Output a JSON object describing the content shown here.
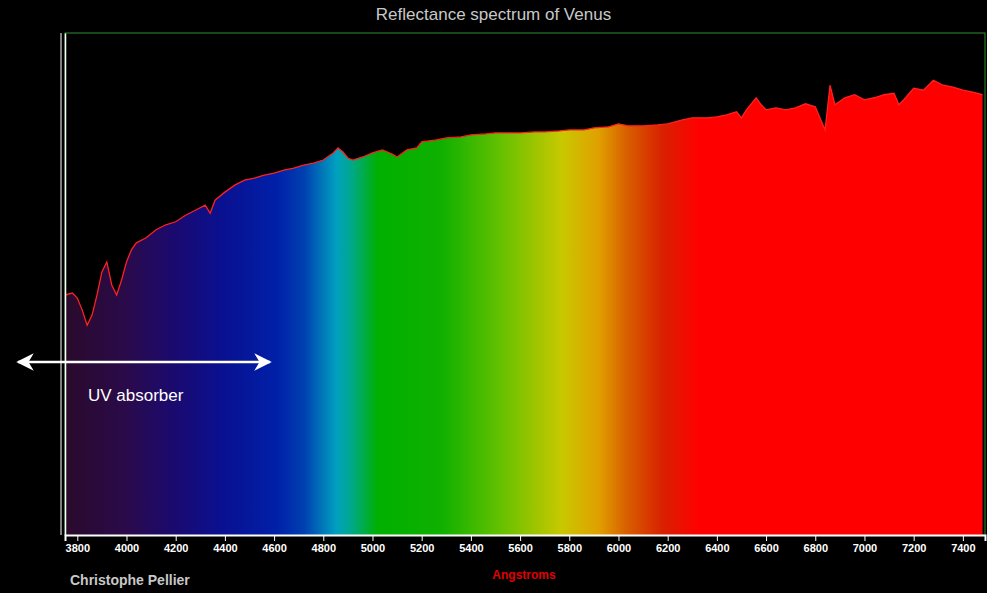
{
  "chart_data": {
    "type": "area",
    "title": "Reflectance spectrum of Venus",
    "x_label": "Angstroms",
    "credit": "Christophe Pellier",
    "annotations": [
      "UV absorber"
    ],
    "color": "#ff2020",
    "tick_labels": "x",
    "xlim": [
      3750,
      7490
    ],
    "ylim": [
      0,
      1
    ],
    "xticks": [
      3800,
      4000,
      4200,
      4400,
      4600,
      4800,
      5000,
      5200,
      5400,
      5600,
      5800,
      6000,
      6200,
      6400,
      6600,
      6800,
      7000,
      7200,
      7400
    ],
    "x": [
      3750,
      3780,
      3800,
      3820,
      3840,
      3860,
      3880,
      3900,
      3920,
      3940,
      3960,
      3980,
      4000,
      4020,
      4040,
      4080,
      4120,
      4160,
      4200,
      4240,
      4280,
      4320,
      4340,
      4360,
      4400,
      4440,
      4480,
      4520,
      4560,
      4600,
      4640,
      4680,
      4720,
      4760,
      4800,
      4840,
      4860,
      4880,
      4900,
      4920,
      4960,
      5000,
      5040,
      5080,
      5100,
      5140,
      5180,
      5200,
      5260,
      5300,
      5360,
      5400,
      5460,
      5500,
      5560,
      5600,
      5660,
      5700,
      5760,
      5800,
      5860,
      5900,
      5960,
      6000,
      6040,
      6100,
      6160,
      6200,
      6260,
      6300,
      6360,
      6400,
      6440,
      6480,
      6500,
      6520,
      6560,
      6580,
      6600,
      6640,
      6680,
      6720,
      6760,
      6800,
      6840,
      6860,
      6880,
      6920,
      6960,
      7000,
      7040,
      7080,
      7120,
      7140,
      7160,
      7200,
      7240,
      7280,
      7320,
      7360,
      7400,
      7440,
      7480
    ],
    "values": [
      0.478,
      0.482,
      0.472,
      0.448,
      0.418,
      0.438,
      0.478,
      0.524,
      0.544,
      0.498,
      0.478,
      0.508,
      0.544,
      0.568,
      0.582,
      0.592,
      0.608,
      0.618,
      0.624,
      0.637,
      0.647,
      0.657,
      0.641,
      0.667,
      0.683,
      0.697,
      0.707,
      0.711,
      0.717,
      0.721,
      0.727,
      0.731,
      0.737,
      0.741,
      0.747,
      0.761,
      0.771,
      0.763,
      0.751,
      0.747,
      0.753,
      0.761,
      0.767,
      0.759,
      0.753,
      0.767,
      0.771,
      0.783,
      0.787,
      0.791,
      0.793,
      0.797,
      0.799,
      0.801,
      0.801,
      0.801,
      0.803,
      0.803,
      0.805,
      0.807,
      0.807,
      0.811,
      0.813,
      0.819,
      0.815,
      0.815,
      0.817,
      0.819,
      0.827,
      0.831,
      0.831,
      0.833,
      0.837,
      0.843,
      0.831,
      0.847,
      0.871,
      0.857,
      0.847,
      0.851,
      0.847,
      0.851,
      0.859,
      0.853,
      0.807,
      0.896,
      0.857,
      0.871,
      0.877,
      0.867,
      0.871,
      0.877,
      0.88,
      0.857,
      0.867,
      0.89,
      0.886,
      0.906,
      0.896,
      0.892,
      0.886,
      0.882,
      0.877
    ]
  }
}
